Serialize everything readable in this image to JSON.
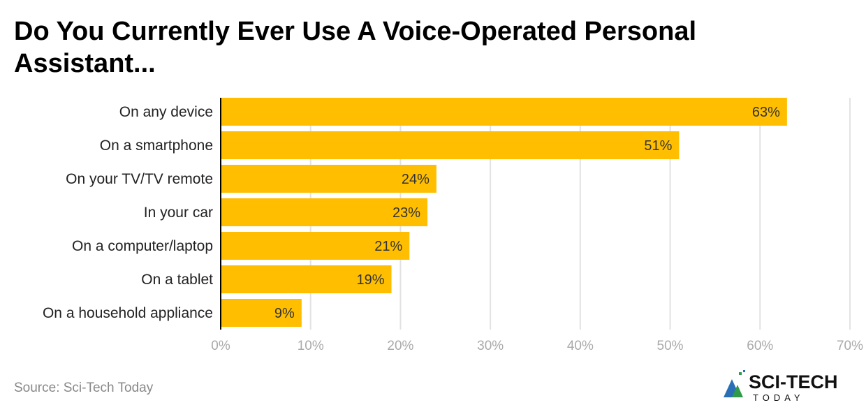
{
  "chart_data": {
    "type": "bar",
    "orientation": "horizontal",
    "title": "Do You Currently Ever Use A Voice-Operated Personal Assistant...",
    "categories": [
      "On any device",
      "On a smartphone",
      "On your TV/TV remote",
      "In your car",
      "On a computer/laptop",
      "On a tablet",
      "On a household appliance"
    ],
    "values": [
      63,
      51,
      24,
      23,
      21,
      19,
      9
    ],
    "data_labels": [
      "63%",
      "51%",
      "24%",
      "23%",
      "21%",
      "19%",
      "9%"
    ],
    "xlim": [
      0,
      70
    ],
    "xticks": [
      0,
      10,
      20,
      30,
      40,
      50,
      60,
      70
    ],
    "xtick_labels": [
      "0%",
      "10%",
      "20%",
      "30%",
      "40%",
      "50%",
      "60%",
      "70%"
    ],
    "grid": "vertical",
    "bar_color": "#FFBF00"
  },
  "source": "Source: Sci-Tech Today",
  "logo": {
    "text": "SCI-TECH",
    "subtext": "TODAY"
  }
}
